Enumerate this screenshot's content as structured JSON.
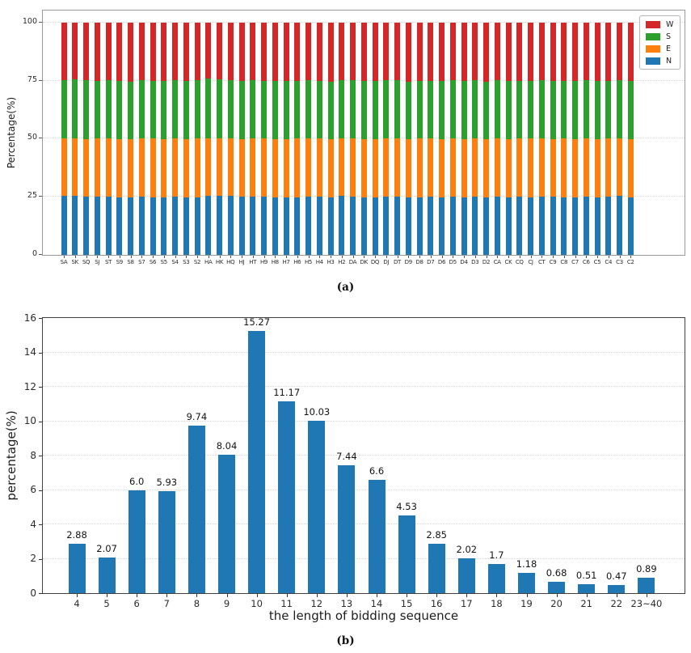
{
  "captions": {
    "a": "(a)",
    "b": "(b)"
  },
  "chart_data": [
    {
      "type": "bar",
      "stacked": true,
      "caption": "(a)",
      "ylabel": "Percentage(%)",
      "ylim": [
        0,
        105
      ],
      "yticks": [
        "0",
        "25",
        "50",
        "75",
        "100"
      ],
      "grid": "horizontal-dotted",
      "legend": {
        "position": "upper-right",
        "entries": [
          {
            "label": "W",
            "color": "#d62728"
          },
          {
            "label": "S",
            "color": "#2ca02c"
          },
          {
            "label": "E",
            "color": "#ff7f0e"
          },
          {
            "label": "N",
            "color": "#1f77b4"
          }
        ]
      },
      "categories": [
        "SA",
        "SK",
        "SQ",
        "SJ",
        "ST",
        "S9",
        "S8",
        "S7",
        "S6",
        "S5",
        "S4",
        "S3",
        "S2",
        "HA",
        "HK",
        "HQ",
        "HJ",
        "HT",
        "H9",
        "H8",
        "H7",
        "H6",
        "H5",
        "H4",
        "H3",
        "H2",
        "DA",
        "DK",
        "DQ",
        "DJ",
        "DT",
        "D9",
        "D8",
        "D7",
        "D6",
        "D5",
        "D4",
        "D3",
        "D2",
        "CA",
        "CK",
        "CQ",
        "CJ",
        "CT",
        "C9",
        "C8",
        "C7",
        "C6",
        "C5",
        "C4",
        "C3",
        "C2"
      ],
      "series": [
        {
          "name": "N",
          "color": "#1f77b4",
          "values": [
            25.3,
            25.4,
            25.2,
            25.1,
            25.0,
            24.6,
            24.6,
            25.0,
            24.9,
            24.8,
            25.1,
            24.9,
            24.8,
            25.6,
            25.4,
            25.3,
            25.0,
            25.1,
            25.0,
            24.8,
            24.9,
            24.8,
            25.1,
            25.0,
            24.7,
            25.5,
            25.2,
            24.9,
            24.8,
            25.0,
            25.1,
            24.7,
            24.9,
            25.0,
            24.8,
            25.2,
            24.9,
            25.0,
            24.6,
            25.1,
            24.8,
            25.0,
            24.9,
            25.2,
            25.0,
            24.9,
            24.8,
            25.1,
            24.9,
            25.0,
            25.3,
            24.8
          ]
        },
        {
          "name": "E",
          "color": "#ff7f0e",
          "values": [
            24.8,
            24.8,
            24.7,
            24.9,
            25.2,
            25.2,
            25.3,
            25.1,
            25.1,
            25.0,
            25.0,
            25.0,
            25.2,
            24.7,
            24.8,
            24.8,
            24.9,
            24.9,
            25.1,
            25.0,
            25.0,
            25.2,
            25.0,
            25.0,
            25.1,
            24.7,
            24.9,
            25.0,
            25.0,
            25.0,
            25.1,
            25.1,
            25.1,
            25.1,
            25.1,
            25.0,
            25.0,
            25.0,
            25.1,
            25.0,
            25.0,
            25.0,
            25.1,
            24.9,
            24.9,
            25.1,
            25.1,
            24.9,
            24.9,
            25.1,
            24.9,
            25.1
          ]
        },
        {
          "name": "S",
          "color": "#2ca02c",
          "values": [
            25.2,
            25.3,
            25.3,
            25.0,
            24.9,
            25.0,
            24.7,
            25.0,
            24.9,
            25.2,
            25.1,
            25.0,
            25.1,
            25.7,
            25.4,
            25.2,
            25.1,
            25.1,
            24.9,
            25.0,
            25.1,
            24.9,
            25.1,
            25.0,
            24.9,
            25.2,
            25.2,
            25.0,
            25.0,
            25.1,
            25.0,
            24.9,
            24.9,
            24.9,
            24.9,
            25.1,
            25.1,
            25.1,
            24.9,
            25.1,
            25.1,
            25.0,
            24.9,
            25.1,
            25.1,
            25.0,
            24.9,
            25.1,
            25.1,
            24.9,
            25.2,
            25.0
          ]
        },
        {
          "name": "W",
          "color": "#d62728",
          "values": [
            24.7,
            24.5,
            24.8,
            25.0,
            24.9,
            25.2,
            25.4,
            24.9,
            25.1,
            25.0,
            24.8,
            25.1,
            24.9,
            24.0,
            24.4,
            24.7,
            25.0,
            24.9,
            25.0,
            25.2,
            25.0,
            25.1,
            24.8,
            25.0,
            25.3,
            24.6,
            24.7,
            25.1,
            25.2,
            24.9,
            24.8,
            25.3,
            25.1,
            25.0,
            25.2,
            24.7,
            25.0,
            24.9,
            25.4,
            24.8,
            25.1,
            25.0,
            25.1,
            24.8,
            25.0,
            25.0,
            25.2,
            24.9,
            25.1,
            25.0,
            24.6,
            25.1
          ]
        }
      ]
    },
    {
      "type": "bar",
      "caption": "(b)",
      "ylabel": "percentage(%)",
      "xlabel": "the length of bidding sequence",
      "ylim": [
        0,
        16
      ],
      "yticks": [
        "0",
        "2",
        "4",
        "6",
        "8",
        "10",
        "12",
        "14",
        "16"
      ],
      "grid": "horizontal-dotted",
      "bar_color": "#1f77b4",
      "categories": [
        "4",
        "5",
        "6",
        "7",
        "8",
        "9",
        "10",
        "11",
        "12",
        "13",
        "14",
        "15",
        "16",
        "17",
        "18",
        "19",
        "20",
        "21",
        "22",
        "23~40"
      ],
      "values": [
        2.88,
        2.07,
        6.0,
        5.93,
        9.74,
        8.04,
        15.27,
        11.17,
        10.03,
        7.44,
        6.6,
        4.53,
        2.85,
        2.02,
        1.7,
        1.18,
        0.68,
        0.51,
        0.47,
        0.89
      ],
      "value_labels": [
        "2.88",
        "2.07",
        "6.0",
        "5.93",
        "9.74",
        "8.04",
        "15.27",
        "11.17",
        "10.03",
        "7.44",
        "6.6",
        "4.53",
        "2.85",
        "2.02",
        "1.7",
        "1.18",
        "0.68",
        "0.51",
        "0.47",
        "0.89"
      ]
    }
  ]
}
